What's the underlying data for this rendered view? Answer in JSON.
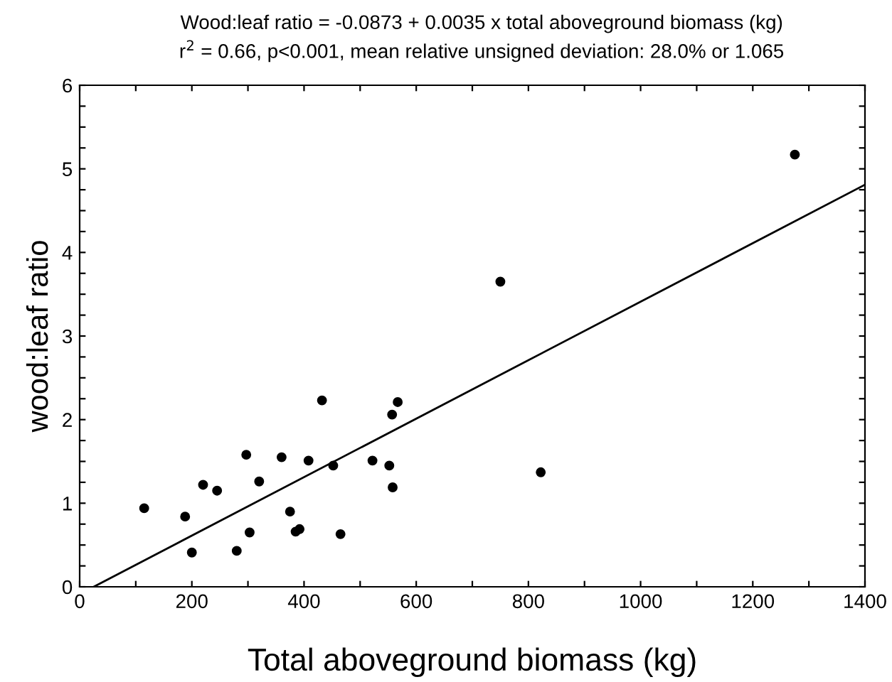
{
  "chart_data": {
    "type": "scatter",
    "title": "Wood:leaf ratio = -0.0873 + 0.0035 x total aboveground biomass (kg)",
    "subtitle": "r$^{2}$ = 0.66, p<0.001, mean relative unsigned deviation: 28.0% or 1.065",
    "xlabel": "Total aboveground biomass (kg)",
    "ylabel": "wood:leaf ratio",
    "x": [
      115,
      188,
      200,
      220,
      245,
      280,
      297,
      303,
      320,
      360,
      375,
      385,
      392,
      408,
      432,
      452,
      465,
      522,
      552,
      557,
      558,
      567,
      750,
      822,
      1275
    ],
    "series": [
      {
        "color": "#000000",
        "marker": "circle",
        "values": [
          0.94,
          0.84,
          0.41,
          1.22,
          1.15,
          0.43,
          1.58,
          0.65,
          1.26,
          1.55,
          0.9,
          0.66,
          0.69,
          1.51,
          2.23,
          1.45,
          0.63,
          1.51,
          1.45,
          2.06,
          1.19,
          2.21,
          3.65,
          1.37,
          5.17
        ]
      },
      {
        "type": "line",
        "color": "#000000",
        "marker": "none",
        "line_style": "solid",
        "x": [
          25,
          1400
        ],
        "values": [
          0,
          4.81
        ]
      }
    ],
    "xlim": [
      0,
      1400
    ],
    "ylim": [
      0,
      6
    ],
    "xticks": [
      0,
      {
        "value": 100,
        "label": null
      },
      200,
      {
        "value": 300,
        "label": null
      },
      400,
      {
        "value": 500,
        "label": null
      },
      600,
      {
        "value": 700,
        "label": null
      },
      800,
      {
        "value": 900,
        "label": null
      },
      1000,
      {
        "value": 1100,
        "label": null
      },
      1200,
      {
        "value": 1300,
        "label": null
      },
      1400
    ],
    "yticks": [
      0,
      {
        "value": 0.25,
        "label": null
      },
      {
        "value": 0.5,
        "label": null
      },
      {
        "value": 0.75,
        "label": null
      },
      1,
      {
        "value": 1.25,
        "label": null
      },
      {
        "value": 1.5,
        "label": null
      },
      {
        "value": 1.75,
        "label": null
      },
      2,
      {
        "value": 2.25,
        "label": null
      },
      {
        "value": 2.5,
        "label": null
      },
      {
        "value": 2.75,
        "label": null
      },
      3,
      {
        "value": 3.25,
        "label": null
      },
      {
        "value": 3.5,
        "label": null
      },
      {
        "value": 3.75,
        "label": null
      },
      4,
      {
        "value": 4.25,
        "label": null
      },
      {
        "value": 4.5,
        "label": null
      },
      {
        "value": 4.75,
        "label": null
      },
      5,
      {
        "value": 5.25,
        "label": null
      },
      {
        "value": 5.5,
        "label": null
      },
      {
        "value": 5.75,
        "label": null
      },
      6
    ],
    "grid": false,
    "legend": false
  }
}
